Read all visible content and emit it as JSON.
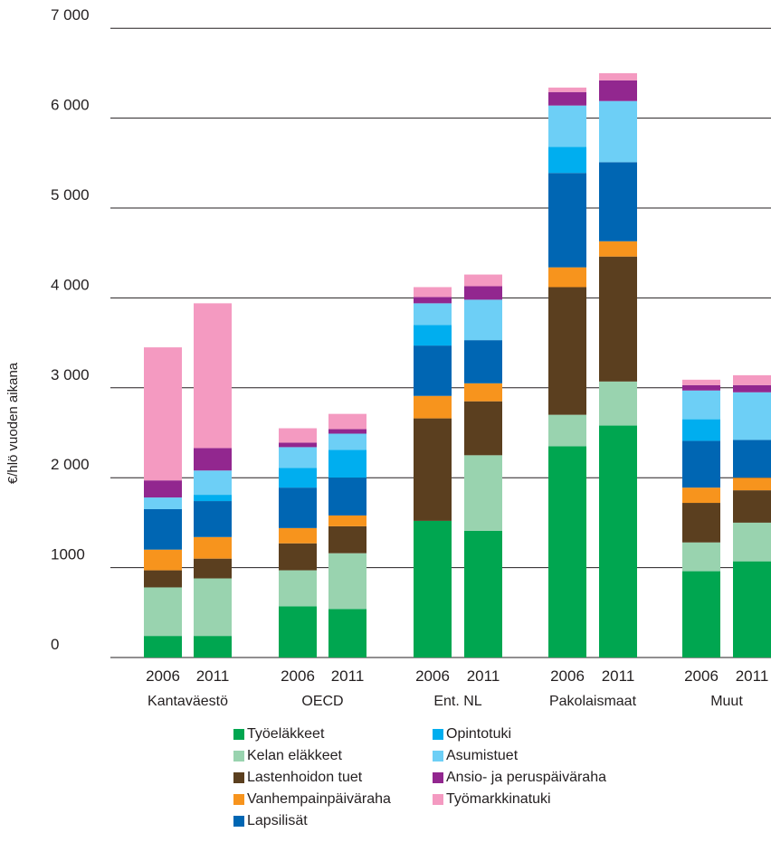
{
  "chart_data": {
    "type": "bar",
    "stacked": true,
    "ylabel": "€/hlö vuoden aikana",
    "ylim": [
      0,
      7000
    ],
    "yticks": [
      0,
      1000,
      2000,
      3000,
      4000,
      5000,
      6000,
      7000
    ],
    "ytick_labels": [
      "0",
      "1000",
      "2 000",
      "3 000",
      "4 000",
      "5 000",
      "6 000",
      "7 000"
    ],
    "groups": [
      "Kantaväestö",
      "OECD",
      "Ent. NL",
      "Pakolaismaat",
      "Muut"
    ],
    "years": [
      "2006",
      "2011"
    ],
    "categories": [
      "Kantaväestö 2006",
      "Kantaväestö 2011",
      "OECD 2006",
      "OECD 2011",
      "Ent. NL 2006",
      "Ent. NL 2011",
      "Pakolaismaat 2006",
      "Pakolaismaat 2011",
      "Muut 2006",
      "Muut 2011"
    ],
    "series": [
      {
        "name": "Työeläkkeet",
        "color": "#00a650",
        "values": [
          240,
          240,
          570,
          540,
          1520,
          1410,
          2350,
          2580,
          960,
          1070
        ]
      },
      {
        "name": "Kelan eläkkeet",
        "color": "#99d3af",
        "values": [
          540,
          640,
          400,
          620,
          0,
          840,
          350,
          490,
          320,
          430
        ]
      },
      {
        "name": "Lastenhoidon tuet",
        "color": "#5b3f1f",
        "values": [
          190,
          220,
          300,
          300,
          1140,
          600,
          1420,
          1390,
          440,
          360
        ]
      },
      {
        "name": "Vanhempainpäiväraha",
        "color": "#f7941d",
        "values": [
          230,
          240,
          170,
          120,
          250,
          200,
          220,
          170,
          170,
          140
        ]
      },
      {
        "name": "Lapsilisät",
        "color": "#0066b3",
        "values": [
          450,
          400,
          450,
          420,
          560,
          480,
          1050,
          880,
          520,
          420
        ]
      },
      {
        "name": "Opintotuki",
        "color": "#00aeef",
        "values": [
          0,
          70,
          220,
          310,
          230,
          0,
          290,
          0,
          240,
          0
        ]
      },
      {
        "name": "Asumistuet",
        "color": "#6dcff6",
        "values": [
          130,
          270,
          230,
          180,
          240,
          450,
          460,
          680,
          320,
          530
        ]
      },
      {
        "name": "Ansio- ja peruspäiväraha",
        "color": "#92278f",
        "values": [
          190,
          250,
          50,
          50,
          70,
          150,
          150,
          230,
          60,
          80
        ]
      },
      {
        "name": "Työmarkkinatuki",
        "color": "#f49ac1",
        "values": [
          1480,
          1610,
          160,
          170,
          110,
          130,
          50,
          80,
          60,
          110
        ]
      }
    ],
    "legend_position": "bottom",
    "grid": "horizontal"
  }
}
